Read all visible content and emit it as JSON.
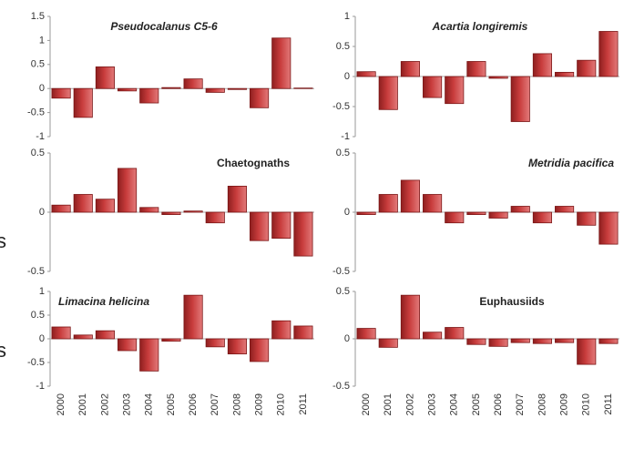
{
  "side_labels": [
    "s",
    "s"
  ],
  "chart_data": [
    {
      "type": "bar",
      "title": "Pseudocalanus C5-6",
      "italic": true,
      "color": "#c83c3c",
      "ylim": [
        -1,
        1.5
      ],
      "yticks": [
        -1,
        -0.5,
        0,
        0.5,
        1,
        1.5
      ],
      "values": [
        -0.2,
        -0.6,
        0.45,
        -0.05,
        -0.3,
        0.02,
        0.2,
        -0.08,
        -0.02,
        -0.4,
        1.05,
        0.01
      ]
    },
    {
      "type": "bar",
      "title": "Acartia longiremis",
      "italic": true,
      "color": "#c83c3c",
      "ylim": [
        -1,
        1
      ],
      "yticks": [
        -1,
        -0.5,
        0,
        0.5,
        1
      ],
      "values": [
        0.08,
        -0.55,
        0.25,
        -0.35,
        -0.45,
        0.25,
        -0.03,
        -0.75,
        0.38,
        0.07,
        0.27,
        0.75
      ]
    },
    {
      "type": "bar",
      "title": "Chaetognaths",
      "italic": false,
      "color": "#c83c3c",
      "ylim": [
        -0.5,
        0.5
      ],
      "yticks": [
        -0.5,
        0,
        0.5
      ],
      "values": [
        0.06,
        0.15,
        0.11,
        0.37,
        0.04,
        -0.02,
        0.01,
        -0.09,
        0.22,
        -0.24,
        -0.22,
        -0.37
      ]
    },
    {
      "type": "bar",
      "title": "Metridia pacifica",
      "italic": true,
      "color": "#c83c3c",
      "ylim": [
        -0.5,
        0.5
      ],
      "yticks": [
        -0.5,
        0,
        0.5
      ],
      "values": [
        -0.02,
        0.15,
        0.27,
        0.15,
        -0.09,
        -0.02,
        -0.05,
        0.05,
        -0.09,
        0.05,
        -0.11,
        -0.27
      ]
    },
    {
      "type": "bar",
      "title": "Limacina helicina",
      "italic": true,
      "color": "#c83c3c",
      "ylim": [
        -1,
        1
      ],
      "yticks": [
        -1,
        -0.5,
        0,
        0.5,
        1
      ],
      "categories": [
        "2000",
        "2001",
        "2002",
        "2003",
        "2004",
        "2005",
        "2006",
        "2007",
        "2008",
        "2009",
        "2010",
        "2011"
      ],
      "values": [
        0.25,
        0.08,
        0.17,
        -0.25,
        -0.68,
        -0.05,
        0.92,
        -0.17,
        -0.32,
        -0.48,
        0.38,
        0.27
      ]
    },
    {
      "type": "bar",
      "title": "Euphausiids",
      "italic": false,
      "color": "#c83c3c",
      "ylim": [
        -0.5,
        0.5
      ],
      "yticks": [
        -0.5,
        0,
        0.5
      ],
      "categories": [
        "2000",
        "2001",
        "2002",
        "2003",
        "2004",
        "2005",
        "2006",
        "2007",
        "2008",
        "2009",
        "2010",
        "2011"
      ],
      "values": [
        0.11,
        -0.09,
        0.46,
        0.07,
        0.12,
        -0.06,
        -0.08,
        -0.04,
        -0.05,
        -0.04,
        -0.27,
        -0.05
      ]
    }
  ]
}
